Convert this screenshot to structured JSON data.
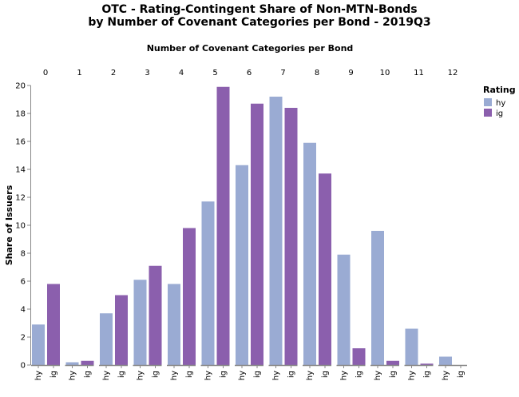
{
  "chart_data": {
    "type": "bar",
    "title_line1": "OTC - Rating-Contingent Share of Non-MTN-Bonds",
    "title_line2": "by Number of Covenant Categories per Bond - 2019Q3",
    "column_title": "Number of Covenant Categories per Bond",
    "ylabel": "Share of Issuers",
    "ylim": [
      0,
      20
    ],
    "yticks": [
      0,
      2,
      4,
      6,
      8,
      10,
      12,
      14,
      16,
      18,
      20
    ],
    "categories": [
      "0",
      "1",
      "2",
      "3",
      "4",
      "5",
      "6",
      "7",
      "8",
      "9",
      "10",
      "11",
      "12"
    ],
    "sub_categories": [
      "hy",
      "ig"
    ],
    "series": [
      {
        "name": "hy",
        "color": "#9aabd3",
        "values": [
          2.9,
          0.2,
          3.7,
          6.1,
          5.8,
          11.7,
          14.3,
          19.2,
          15.9,
          7.9,
          9.6,
          2.6,
          0.6
        ]
      },
      {
        "name": "ig",
        "color": "#8b5fad",
        "values": [
          5.8,
          0.3,
          5.0,
          7.1,
          9.8,
          19.9,
          18.7,
          18.4,
          13.7,
          1.2,
          0.3,
          0.1,
          0.0
        ]
      }
    ],
    "legend": {
      "title": "Rating",
      "position": "right",
      "items": [
        "hy",
        "ig"
      ]
    },
    "grid": false
  }
}
